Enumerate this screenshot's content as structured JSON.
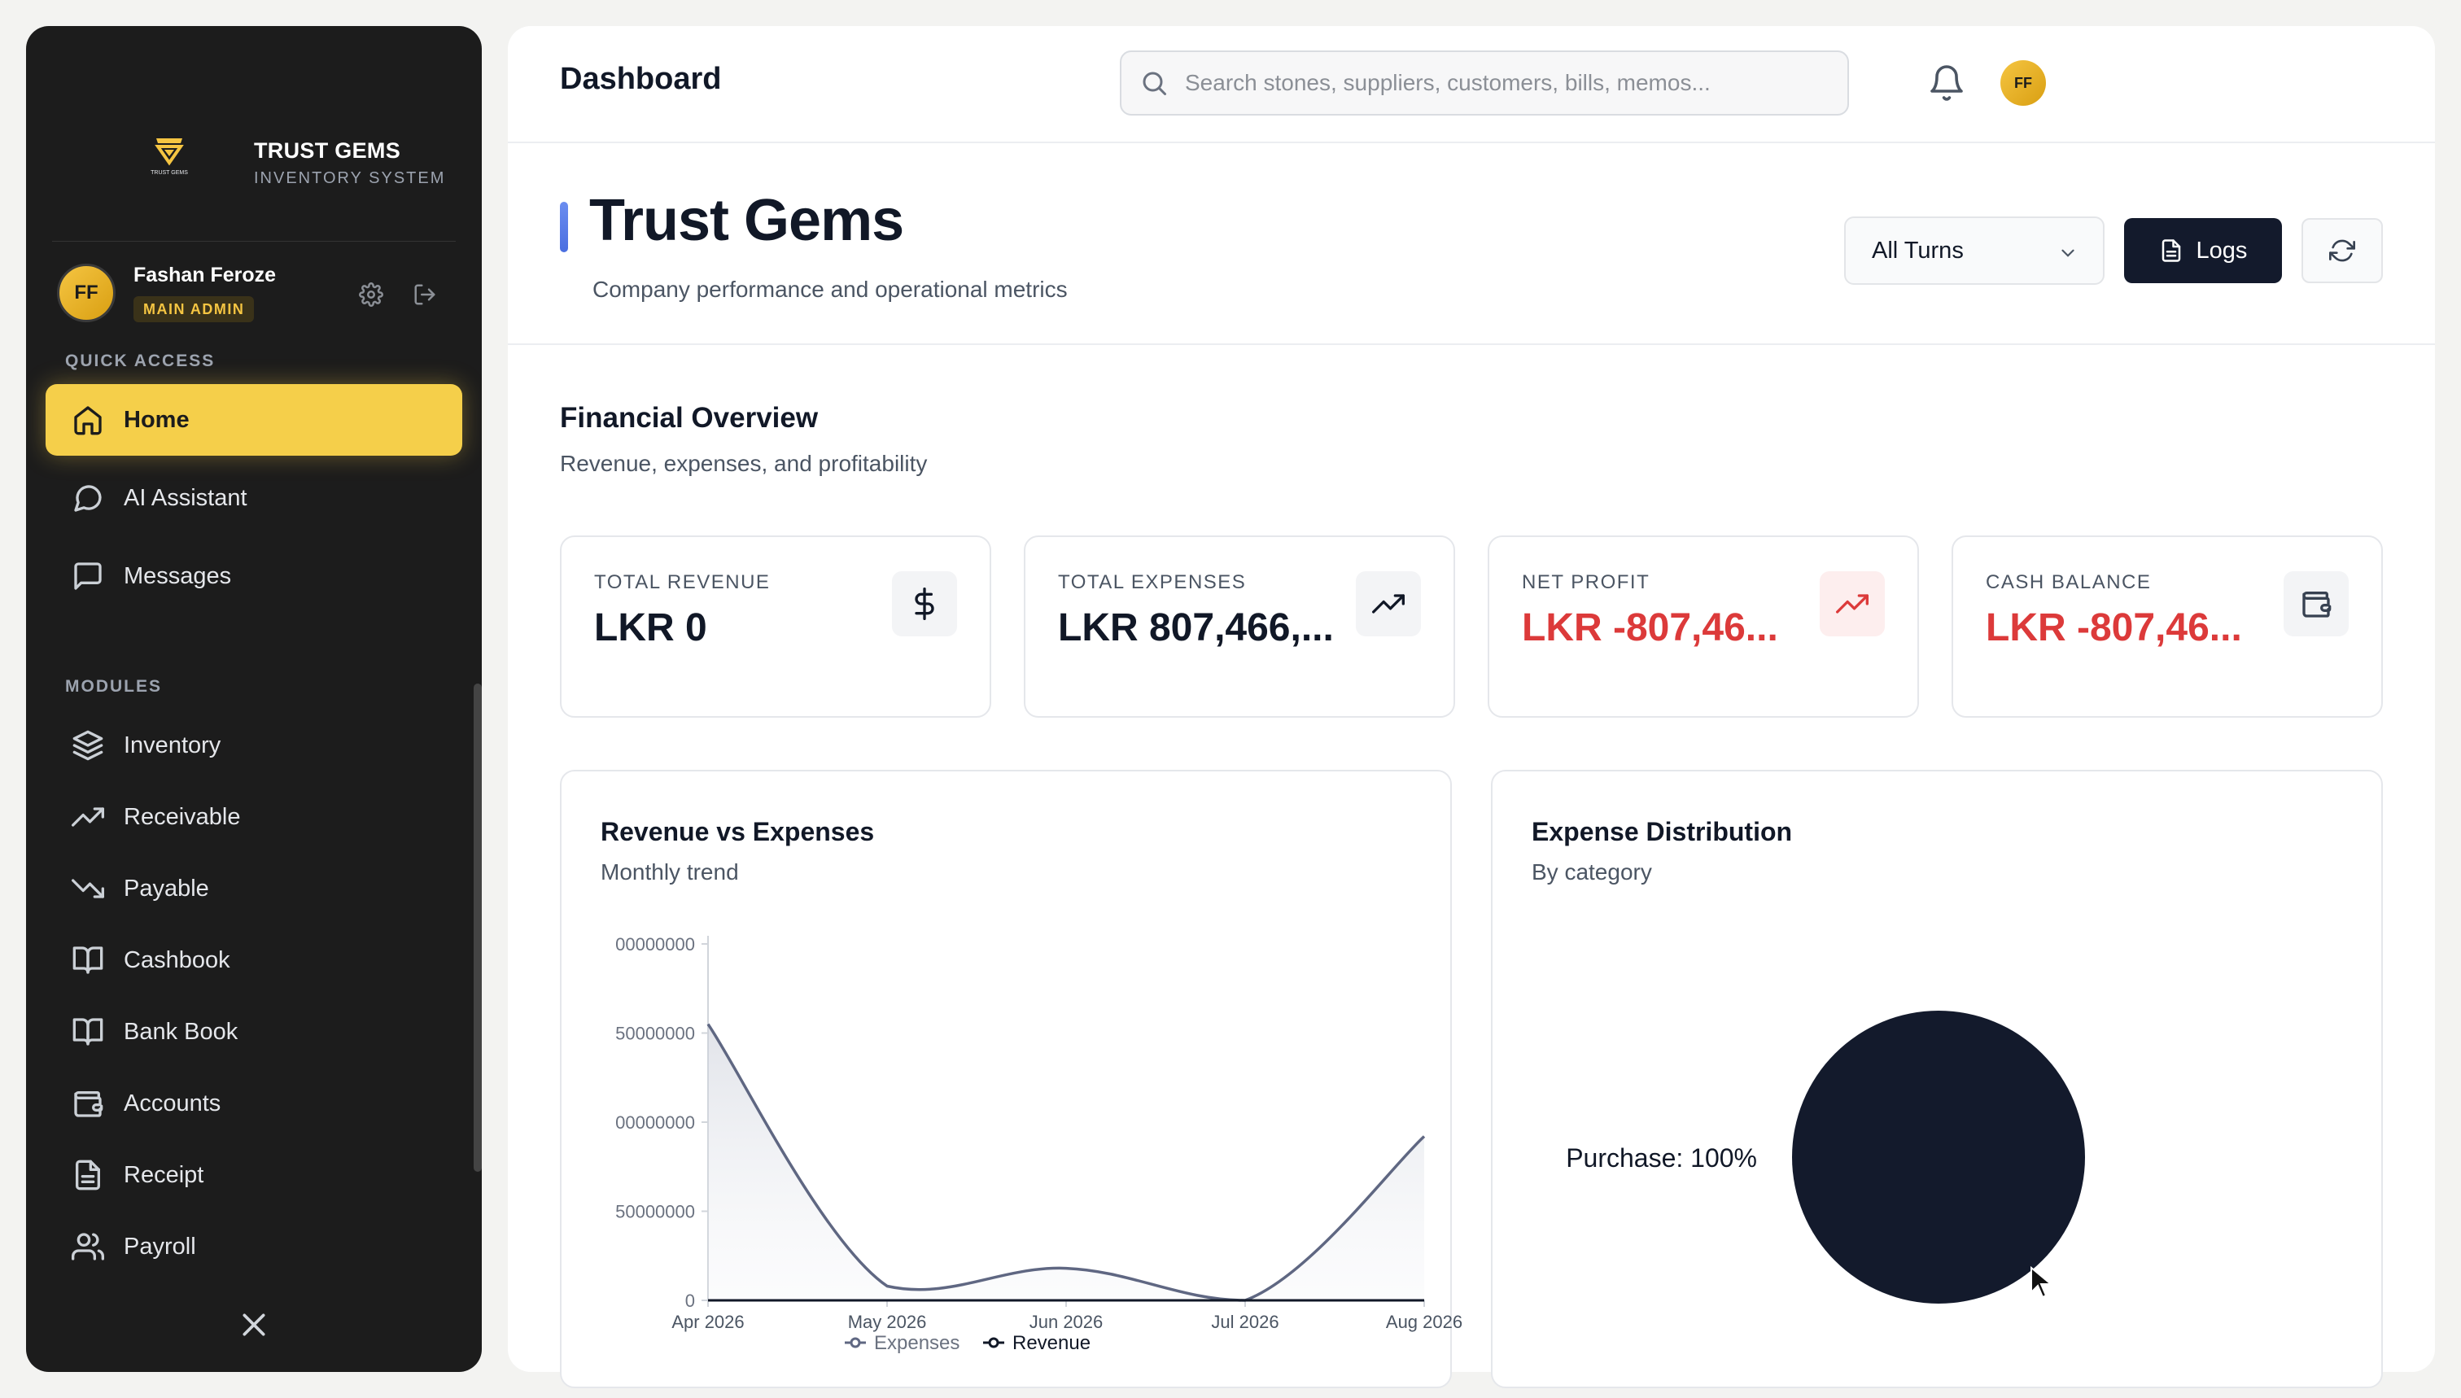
{
  "sidebar": {
    "brand_name": "TRUST GEMS",
    "brand_sub": "INVENTORY SYSTEM",
    "logo_text": "TRUST GEMS",
    "user": {
      "initials": "FF",
      "name": "Fashan Feroze",
      "role": "MAIN ADMIN"
    },
    "quick_access_label": "QUICK ACCESS",
    "quick_access": [
      {
        "label": "Home",
        "icon": "home-icon",
        "active": true
      },
      {
        "label": "AI Assistant",
        "icon": "chat-bubble-icon"
      },
      {
        "label": "Messages",
        "icon": "message-square-icon"
      }
    ],
    "modules_label": "MODULES",
    "modules": [
      {
        "label": "Inventory",
        "icon": "layers-icon"
      },
      {
        "label": "Receivable",
        "icon": "trending-up-icon"
      },
      {
        "label": "Payable",
        "icon": "trending-down-icon"
      },
      {
        "label": "Cashbook",
        "icon": "book-open-icon"
      },
      {
        "label": "Bank Book",
        "icon": "book-open-icon"
      },
      {
        "label": "Accounts",
        "icon": "wallet-icon"
      },
      {
        "label": "Receipt",
        "icon": "file-text-icon"
      },
      {
        "label": "Payroll",
        "icon": "users-icon"
      }
    ]
  },
  "header": {
    "title": "Dashboard",
    "search_placeholder": "Search stones, suppliers, customers, bills, memos...",
    "avatar_initials": "FF"
  },
  "hero": {
    "title": "Trust Gems",
    "subtitle": "Company performance and operational metrics",
    "turns_select": "All Turns",
    "logs_label": "Logs"
  },
  "financial": {
    "title": "Financial Overview",
    "subtitle": "Revenue, expenses, and profitability",
    "cards": [
      {
        "label": "TOTAL REVENUE",
        "value": "LKR 0",
        "icon": "dollar-icon",
        "negative": false
      },
      {
        "label": "TOTAL EXPENSES",
        "value": "LKR 807,466,...",
        "icon": "trending-up-icon",
        "negative": false
      },
      {
        "label": "NET PROFIT",
        "value": "LKR -807,46...",
        "icon": "trending-up-icon",
        "negative": true
      },
      {
        "label": "CASH BALANCE",
        "value": "LKR -807,46...",
        "icon": "wallet-icon",
        "negative": true
      }
    ]
  },
  "revenue_panel": {
    "title": "Revenue vs Expenses",
    "subtitle": "Monthly trend"
  },
  "expense_panel": {
    "title": "Expense Distribution",
    "subtitle": "By category"
  },
  "colors": {
    "accent": "#f5cf4a",
    "dark": "#131a2c",
    "negative": "#dc3a3a",
    "expenses_line": "#5f6782",
    "revenue_line": "#111827"
  },
  "chart_data": [
    {
      "type": "area",
      "title": "Revenue vs Expenses",
      "categories": [
        "Apr 2026",
        "May 2026",
        "Jun 2026",
        "Jul 2026",
        "Aug 2026"
      ],
      "y_tick_labels": [
        "0",
        "50000000",
        "00000000",
        "50000000",
        "00000000"
      ],
      "ylim": [
        0,
        200000000
      ],
      "series": [
        {
          "name": "Expenses",
          "values": [
            155000000,
            8000000,
            18000000,
            0,
            92000000
          ]
        },
        {
          "name": "Revenue",
          "values": [
            0,
            0,
            0,
            0,
            0
          ]
        }
      ],
      "legend_position": "bottom",
      "grid": false
    },
    {
      "type": "pie",
      "title": "Expense Distribution",
      "slices": [
        {
          "label": "Purchase",
          "value": 100,
          "display": "Purchase: 100%"
        }
      ]
    }
  ]
}
